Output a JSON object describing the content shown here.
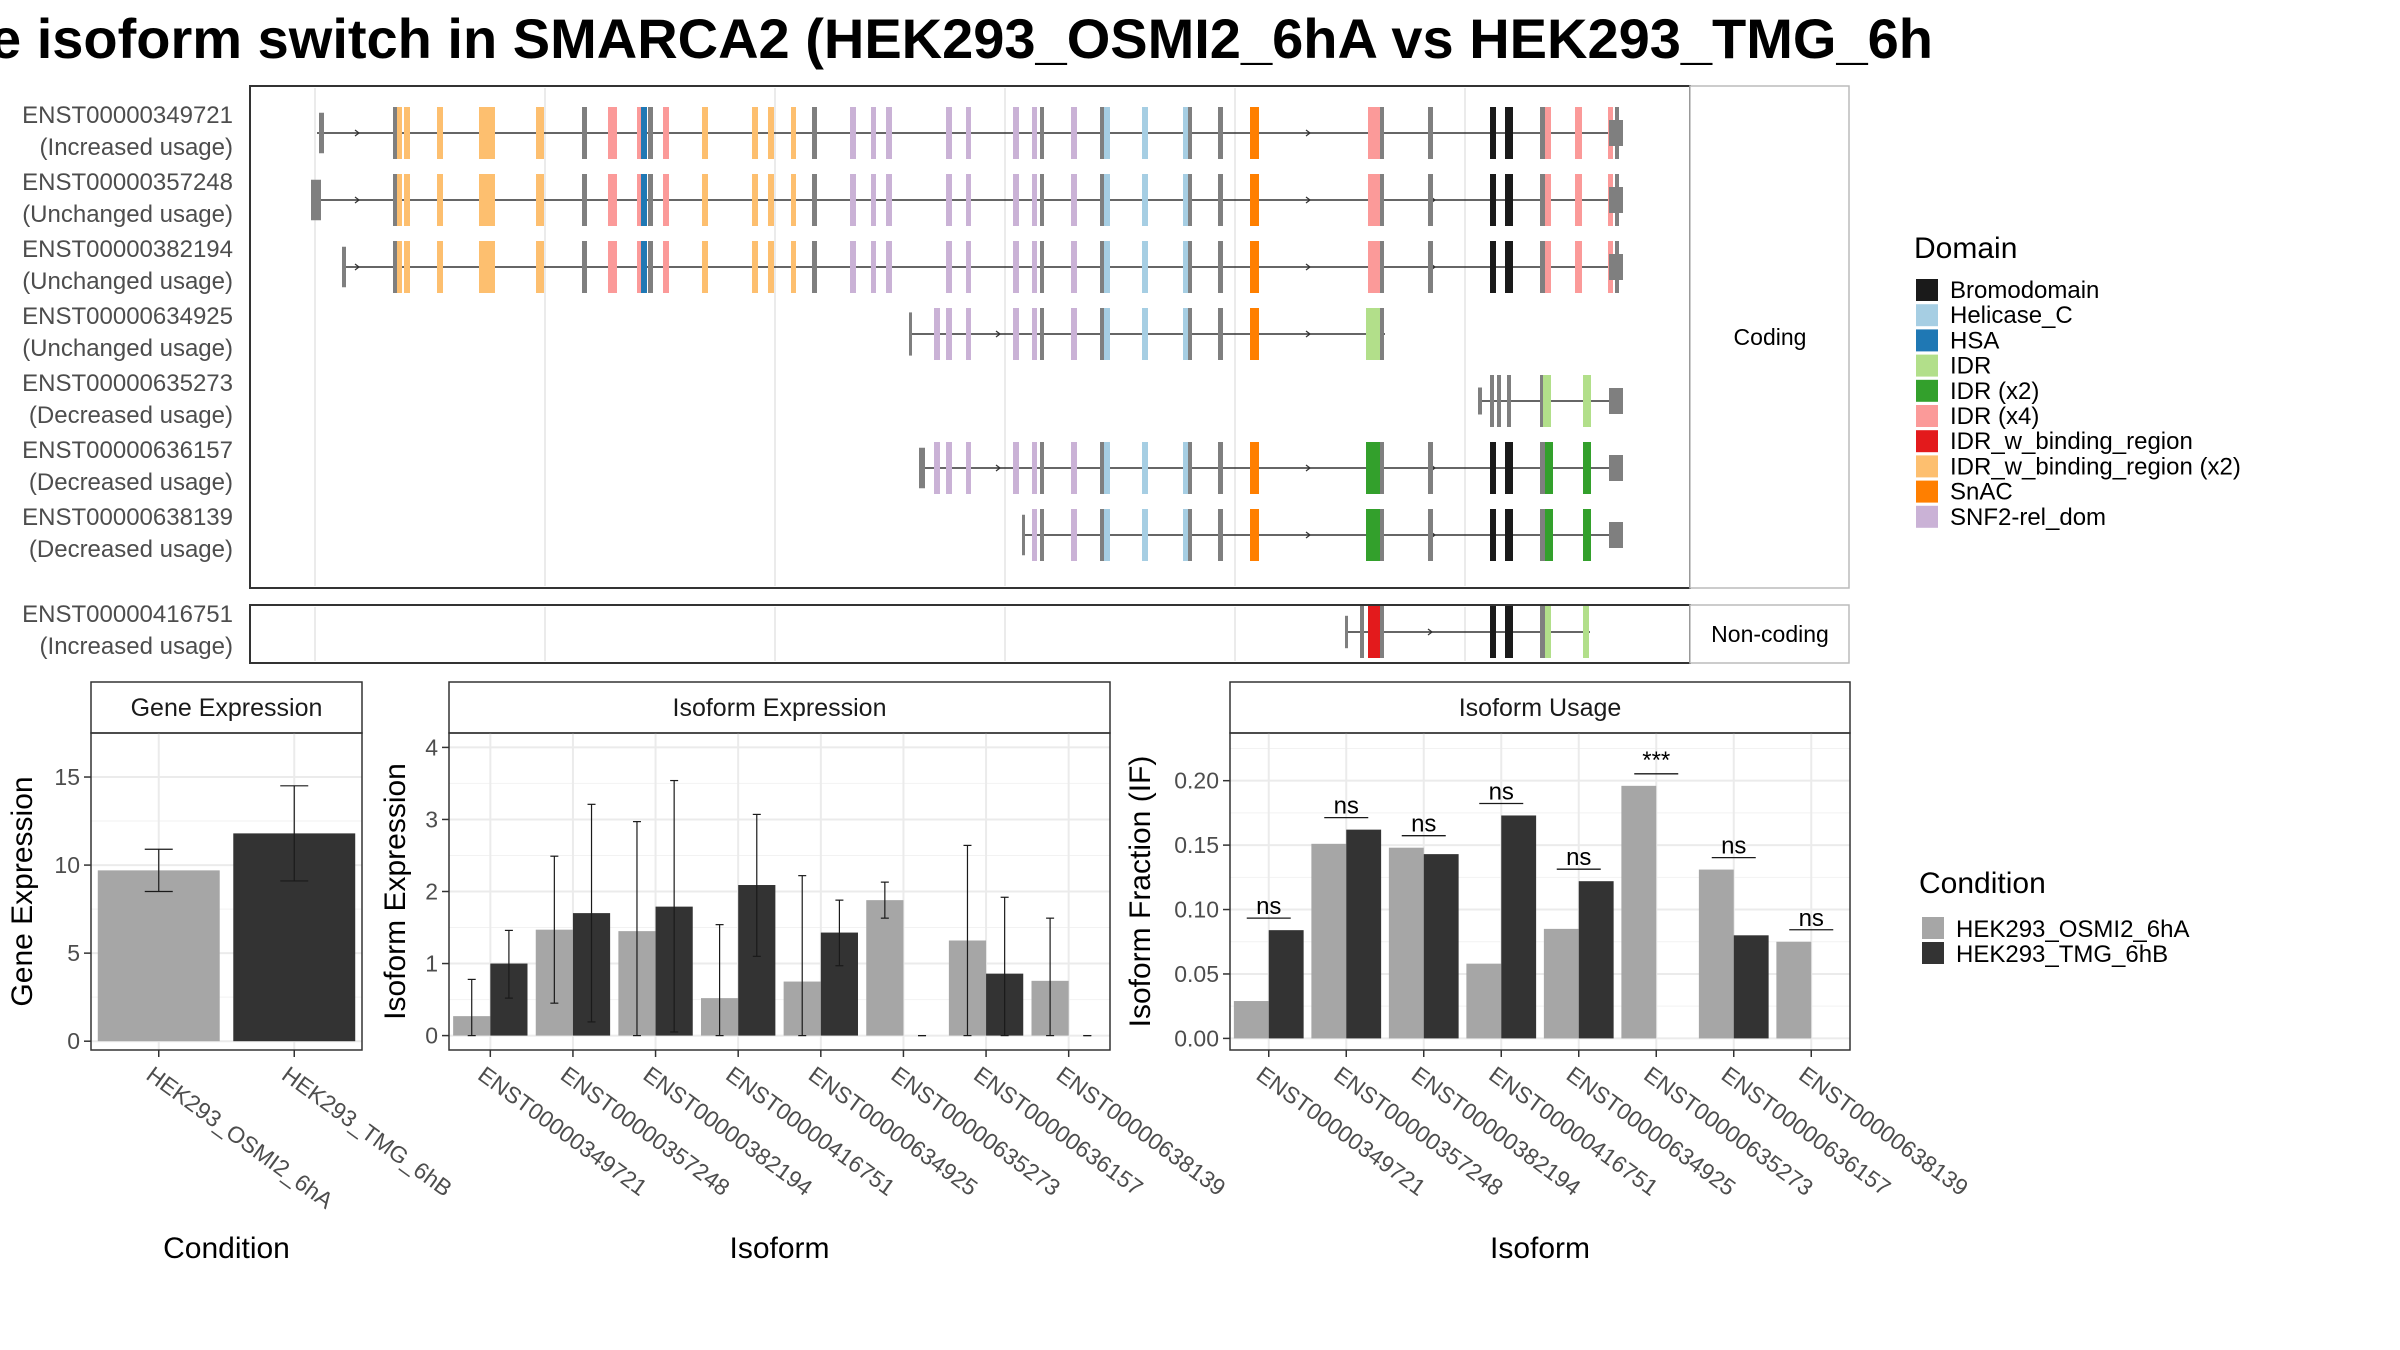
{
  "title": "e isoform switch in SMARCA2 (HEK293_OSMI2_6hA vs HEK293_TMG_6h",
  "domain_colors": {
    "Bromodomain": "#1a1a1a",
    "Helicase_C": "#a6cee3",
    "HSA": "#1f78b4",
    "IDR": "#b2df8a",
    "IDR (x2)": "#33a02c",
    "IDR (x4)": "#fb9a99",
    "IDR_w_binding_region": "#e31a1c",
    "IDR_w_binding_region (x2)": "#fdbf6f",
    "SnAC": "#ff7f00",
    "SNF2-rel_dom": "#cab2d6"
  },
  "structure": {
    "coding_strip_label": "Coding",
    "noncoding_strip_label": "Non-coding",
    "coding_transcripts": [
      {
        "id": "ENST00000349721",
        "usage": "(Increased usage)"
      },
      {
        "id": "ENST00000357248",
        "usage": "(Unchanged usage)"
      },
      {
        "id": "ENST00000382194",
        "usage": "(Unchanged usage)"
      },
      {
        "id": "ENST00000634925",
        "usage": "(Unchanged usage)"
      },
      {
        "id": "ENST00000635273",
        "usage": "(Decreased usage)"
      },
      {
        "id": "ENST00000636157",
        "usage": "(Decreased usage)"
      },
      {
        "id": "ENST00000638139",
        "usage": "(Decreased usage)"
      }
    ],
    "noncoding_transcripts": [
      {
        "id": "ENST00000416751",
        "usage": "(Increased usage)"
      }
    ]
  },
  "legend": {
    "domain_title": "Domain",
    "domain_items": [
      "Bromodomain",
      "Helicase_C",
      "HSA",
      "IDR",
      "IDR (x2)",
      "IDR (x4)",
      "IDR_w_binding_region",
      "IDR_w_binding_region (x2)",
      "SnAC",
      "SNF2-rel_dom"
    ],
    "condition_title": "Condition",
    "condition_items": [
      "HEK293_OSMI2_6hA",
      "HEK293_TMG_6hB"
    ],
    "condition_colors": [
      "#a6a6a6",
      "#333333"
    ]
  },
  "chart_data": [
    {
      "type": "bar",
      "title": "Gene Expression",
      "xlabel": "Condition",
      "ylabel": "Gene Expression",
      "categories": [
        "HEK293_OSMI2_6hA",
        "HEK293_TMG_6hB"
      ],
      "values": [
        9.7,
        11.8
      ],
      "error_low": [
        8.5,
        9.1
      ],
      "error_high": [
        10.9,
        14.5
      ],
      "ylim": [
        -0.5,
        17.5
      ],
      "yticks": [
        0,
        5,
        10,
        15
      ]
    },
    {
      "type": "bar",
      "title": "Isoform Expression",
      "xlabel": "Isoform",
      "ylabel": "Isoform Expression",
      "categories": [
        "ENST00000349721",
        "ENST00000357248",
        "ENST00000382194",
        "ENST00000416751",
        "ENST00000634925",
        "ENST00000635273",
        "ENST00000636157",
        "ENST00000638139"
      ],
      "series": [
        {
          "name": "HEK293_OSMI2_6hA",
          "values": [
            0.27,
            1.47,
            1.45,
            0.52,
            0.75,
            1.88,
            1.32,
            0.76
          ],
          "error_low": [
            0.0,
            0.45,
            0.0,
            0.0,
            0.0,
            1.63,
            0.0,
            0.0
          ],
          "error_high": [
            0.78,
            2.49,
            2.97,
            1.54,
            2.22,
            2.13,
            2.64,
            1.63
          ]
        },
        {
          "name": "HEK293_TMG_6hB",
          "values": [
            1.0,
            1.7,
            1.79,
            2.09,
            1.43,
            0.0,
            0.86,
            0.0
          ],
          "error_low": [
            0.52,
            0.19,
            0.05,
            1.1,
            0.97,
            0.0,
            0.0,
            0.0
          ],
          "error_high": [
            1.46,
            3.21,
            3.54,
            3.07,
            1.88,
            0.0,
            1.92,
            0.0
          ]
        }
      ],
      "ylim": [
        -0.2,
        4.2
      ],
      "yticks": [
        0,
        1,
        2,
        3,
        4
      ]
    },
    {
      "type": "bar",
      "title": "Isoform Usage",
      "xlabel": "Isoform",
      "ylabel": "Isoform Fraction (IF)",
      "categories": [
        "ENST00000349721",
        "ENST00000357248",
        "ENST00000382194",
        "ENST00000416751",
        "ENST00000634925",
        "ENST00000635273",
        "ENST00000636157",
        "ENST00000638139"
      ],
      "series": [
        {
          "name": "HEK293_OSMI2_6hA",
          "values": [
            0.029,
            0.151,
            0.148,
            0.058,
            0.085,
            0.196,
            0.131,
            0.075
          ]
        },
        {
          "name": "HEK293_TMG_6hB",
          "values": [
            0.084,
            0.162,
            0.143,
            0.173,
            0.122,
            0.0,
            0.08,
            0.0
          ]
        }
      ],
      "significance": [
        "ns",
        "ns",
        "ns",
        "ns",
        "ns",
        "***",
        "ns",
        "ns"
      ],
      "ylim": [
        -0.009,
        0.237
      ],
      "yticks": [
        "0.00",
        "0.05",
        "0.10",
        "0.15",
        "0.20"
      ]
    }
  ]
}
